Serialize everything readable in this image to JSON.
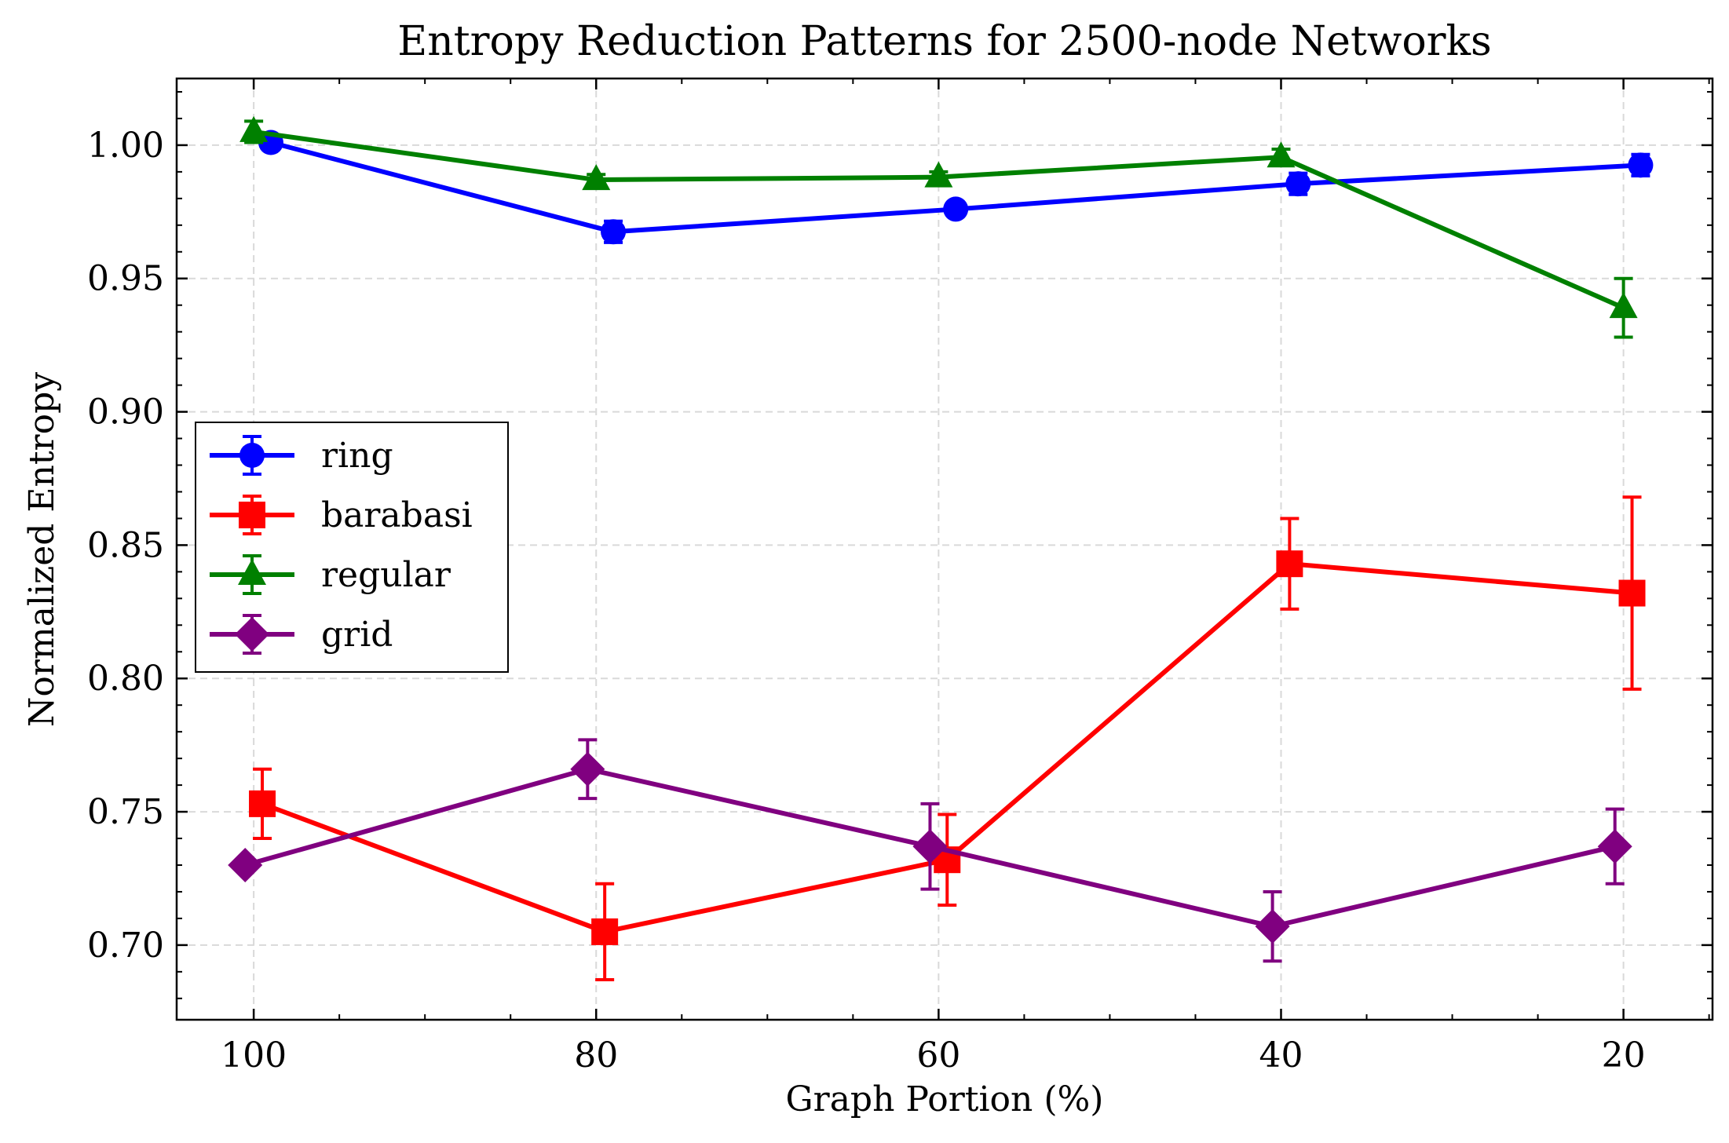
{
  "chart_data": {
    "type": "line",
    "title": "Entropy Reduction Patterns for 2500-node Networks",
    "xlabel": "Graph Portion (%)",
    "ylabel": "Normalized Entropy",
    "x_ticks": [
      100,
      80,
      60,
      40,
      20
    ],
    "x_tick_labels": [
      "100",
      "80",
      "60",
      "40",
      "20"
    ],
    "y_ticks": [
      0.7,
      0.75,
      0.8,
      0.85,
      0.9,
      0.95,
      1.0
    ],
    "y_tick_labels": [
      "0.70",
      "0.75",
      "0.80",
      "0.85",
      "0.90",
      "0.95",
      "1.00"
    ],
    "xlim": [
      104.5,
      14.8
    ],
    "ylim": [
      0.672,
      1.025
    ],
    "x_reversed": true,
    "grid": true,
    "legend_position": "center-left",
    "series": [
      {
        "name": "ring",
        "color": "#0000ff",
        "marker": "circle",
        "points": [
          {
            "x": 99,
            "y": 1.001,
            "err": 0.002
          },
          {
            "x": 79,
            "y": 0.9675,
            "err": 0.004
          },
          {
            "x": 59,
            "y": 0.976,
            "err": 0.002
          },
          {
            "x": 39,
            "y": 0.9855,
            "err": 0.004
          },
          {
            "x": 19,
            "y": 0.9925,
            "err": 0.004
          }
        ]
      },
      {
        "name": "barabasi",
        "color": "#ff0000",
        "marker": "square",
        "points": [
          {
            "x": 99.5,
            "y": 0.753,
            "err": 0.013
          },
          {
            "x": 79.5,
            "y": 0.705,
            "err": 0.018
          },
          {
            "x": 59.5,
            "y": 0.732,
            "err": 0.017
          },
          {
            "x": 39.5,
            "y": 0.843,
            "err": 0.017
          },
          {
            "x": 19.5,
            "y": 0.832,
            "err": 0.036
          }
        ]
      },
      {
        "name": "regular",
        "color": "#008000",
        "marker": "triangle",
        "points": [
          {
            "x": 100,
            "y": 1.005,
            "err": 0.004
          },
          {
            "x": 80,
            "y": 0.987,
            "err": 0.002
          },
          {
            "x": 60,
            "y": 0.988,
            "err": 0.002
          },
          {
            "x": 40,
            "y": 0.9955,
            "err": 0.003
          },
          {
            "x": 20,
            "y": 0.939,
            "err": 0.011
          }
        ]
      },
      {
        "name": "grid",
        "color": "#800080",
        "marker": "diamond",
        "points": [
          {
            "x": 100.5,
            "y": 0.73,
            "err": 0.0
          },
          {
            "x": 80.5,
            "y": 0.766,
            "err": 0.011
          },
          {
            "x": 60.5,
            "y": 0.737,
            "err": 0.016
          },
          {
            "x": 40.5,
            "y": 0.707,
            "err": 0.013
          },
          {
            "x": 20.5,
            "y": 0.737,
            "err": 0.014
          }
        ]
      }
    ]
  }
}
